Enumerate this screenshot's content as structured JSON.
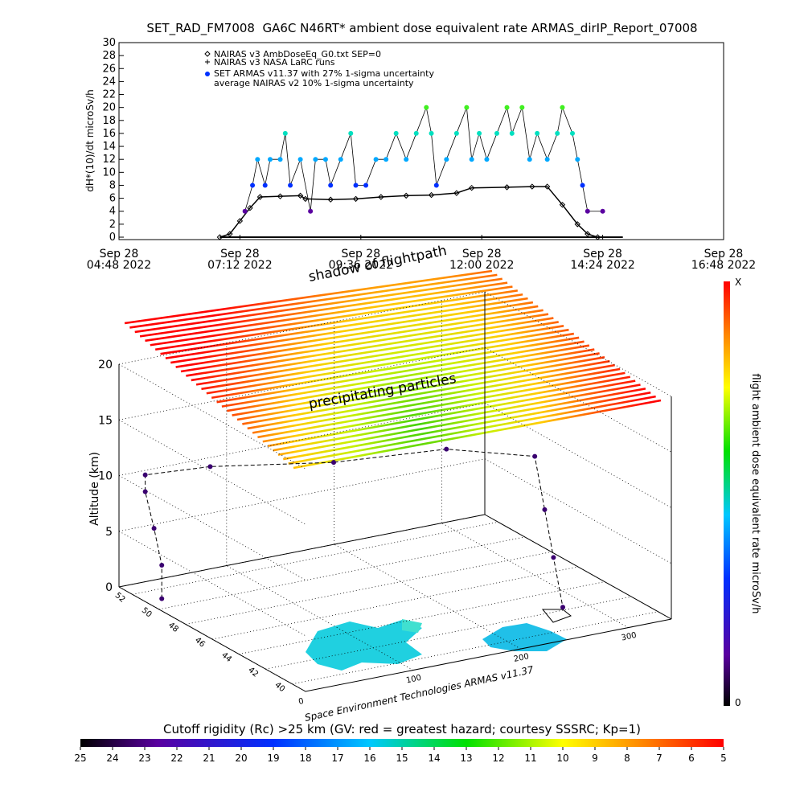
{
  "chart_data": [
    {
      "type": "line",
      "title": "SET_RAD_FM7008  GA6C N46RT* ambient dose equivalent rate ARMAS_dirIP_Report_07008",
      "y_label": "dH*(10)/dt microSv/h",
      "xlim": [
        4.8,
        16.8
      ],
      "xticks": [
        {
          "value": 4.8,
          "label": "Sep 28\n04:48 2022"
        },
        {
          "value": 7.2,
          "label": "Sep 28\n07:12 2022"
        },
        {
          "value": 9.6,
          "label": "Sep 28\n09:36 2022"
        },
        {
          "value": 12.0,
          "label": "Sep 28\n12:00 2022"
        },
        {
          "value": 14.4,
          "label": "Sep 28\n14:24 2022"
        },
        {
          "value": 16.8,
          "label": "Sep 28\n16:48 2022"
        }
      ],
      "ylim": [
        0,
        30
      ],
      "yticks": [
        0,
        2,
        4,
        6,
        8,
        10,
        12,
        14,
        16,
        18,
        20,
        22,
        24,
        26,
        28,
        30
      ],
      "legend": [
        "NAIRAS v3 AmbDoseEq_G0.txt SEP=0",
        "NAIRAS v3 NASA LaRC runs",
        "SET ARMAS v11.37 with 27% 1-sigma uncertainty",
        "average NAIRAS v2 10% 1-sigma uncertainty"
      ],
      "series": [
        {
          "color": "#000000",
          "marker": "diamond",
          "x": [
            6.8,
            7.0,
            7.2,
            7.4,
            7.6,
            8.0,
            8.4,
            8.5,
            9.0,
            9.5,
            10.0,
            10.5,
            11.0,
            11.5,
            11.8,
            12.5,
            13.0,
            13.3,
            13.6,
            13.9,
            14.1,
            14.3
          ],
          "values": [
            0,
            0.5,
            2.5,
            4.5,
            6.2,
            6.3,
            6.4,
            5.9,
            5.8,
            5.9,
            6.2,
            6.4,
            6.5,
            6.8,
            7.6,
            7.7,
            7.8,
            7.8,
            5,
            2,
            0.5,
            0
          ]
        },
        {
          "color": "#000000",
          "marker": "dot",
          "x": [
            7.3,
            7.45,
            7.55,
            7.7,
            7.8,
            8.0,
            8.1,
            8.2,
            8.4,
            8.6,
            8.7,
            8.9,
            9.0,
            9.2,
            9.4,
            9.5,
            9.7,
            9.9,
            10.1,
            10.3,
            10.5,
            10.7,
            10.9,
            11.0,
            11.1,
            11.3,
            11.5,
            11.7,
            11.8,
            11.95,
            12.1,
            12.3,
            12.5,
            12.6,
            12.8,
            12.95,
            13.1,
            13.3,
            13.5,
            13.6,
            13.8,
            13.9,
            14.0,
            14.1,
            14.4
          ],
          "values": [
            4,
            8,
            12,
            8,
            12,
            12,
            16,
            8,
            12,
            4,
            12,
            12,
            8,
            12,
            16,
            8,
            8,
            12,
            12,
            16,
            12,
            16,
            20,
            16,
            8,
            12,
            16,
            20,
            12,
            16,
            12,
            16,
            20,
            16,
            20,
            12,
            16,
            12,
            16,
            20,
            16,
            12,
            8,
            4,
            4
          ]
        }
      ]
    },
    {
      "type": "scatter3d",
      "z_label": "Altitude (km)",
      "zlim": [
        0,
        20
      ],
      "zticks": [
        0,
        5,
        10,
        15,
        20
      ],
      "latlim": [
        39,
        53
      ],
      "latticks": [
        40,
        42,
        44,
        46,
        48,
        50,
        52
      ],
      "lonlim": [
        0,
        340
      ],
      "lonticks": [
        0,
        100,
        200,
        300
      ],
      "annotations": [
        "shadow of flightpath",
        "precipitating particles",
        "Space Environment Technologies ARMAS v11.37"
      ],
      "colorbar_label": "flight ambient dose equivalent rate microSv/h",
      "colorbar_ends": [
        "X",
        "0"
      ],
      "lon": [
        15,
        15,
        14,
        12,
        12,
        60,
        150,
        230,
        275,
        278,
        280,
        280
      ],
      "lat": [
        51,
        51,
        51.5,
        52,
        52,
        51,
        49,
        47,
        44,
        43.5,
        43,
        42.3
      ],
      "alt": [
        0,
        3,
        6,
        9,
        10.5,
        11,
        11,
        12,
        12.5,
        8,
        4,
        0
      ]
    },
    {
      "type": "colorbar",
      "title": "Cutoff rigidity (Rc) >25 km (GV: red = greatest hazard; courtesy SSSRC; Kp=1)",
      "lim": [
        25,
        5
      ],
      "ticks": [
        25,
        24,
        23,
        22,
        21,
        20,
        19,
        18,
        17,
        16,
        15,
        14,
        13,
        12,
        11,
        10,
        9,
        8,
        7,
        6,
        5
      ]
    }
  ]
}
